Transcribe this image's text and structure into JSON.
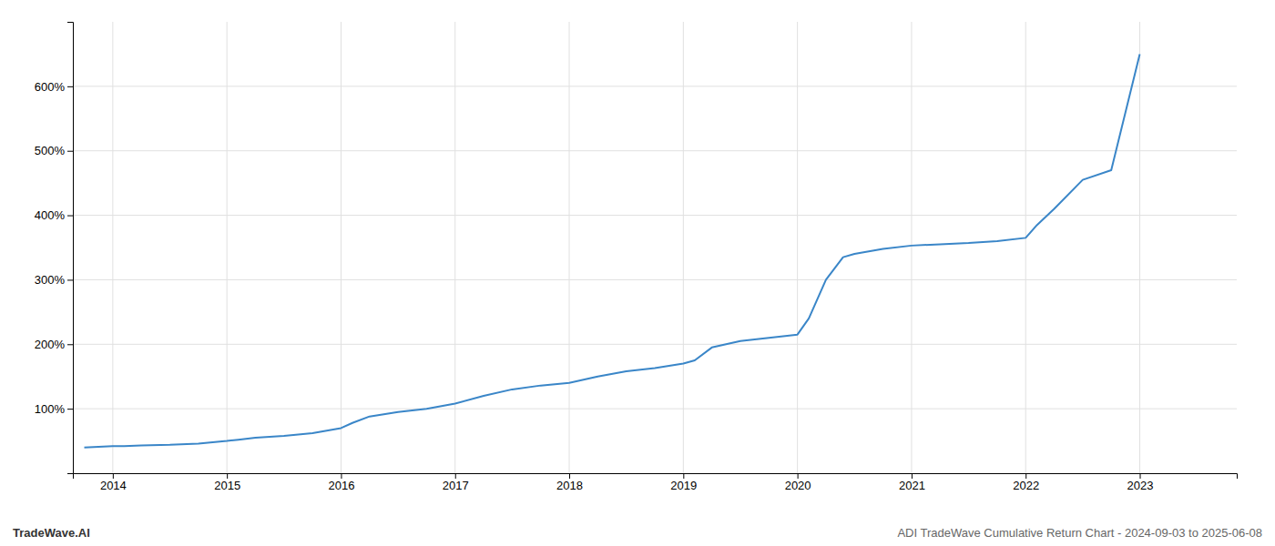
{
  "chart_data": {
    "type": "line",
    "annotations": [
      "TradeWave.AI",
      "ADI TradeWave Cumulative Return Chart - 2024-09-03 to 2025-06-08"
    ],
    "x": [
      2013.75,
      2014.0,
      2014.1,
      2014.25,
      2014.5,
      2014.75,
      2015.0,
      2015.1,
      2015.25,
      2015.5,
      2015.75,
      2016.0,
      2016.1,
      2016.25,
      2016.5,
      2016.75,
      2017.0,
      2017.25,
      2017.5,
      2017.75,
      2018.0,
      2018.25,
      2018.5,
      2018.75,
      2019.0,
      2019.1,
      2019.25,
      2019.5,
      2019.75,
      2020.0,
      2020.1,
      2020.25,
      2020.4,
      2020.5,
      2020.75,
      2021.0,
      2021.25,
      2021.5,
      2021.75,
      2022.0,
      2022.1,
      2022.25,
      2022.5,
      2022.75,
      2023.0
    ],
    "values": [
      40,
      42,
      42,
      43,
      44,
      46,
      50,
      52,
      55,
      58,
      62,
      70,
      78,
      88,
      95,
      100,
      108,
      120,
      130,
      136,
      140,
      150,
      158,
      163,
      170,
      175,
      195,
      205,
      210,
      215,
      240,
      300,
      335,
      340,
      348,
      353,
      355,
      357,
      360,
      365,
      385,
      410,
      455,
      470,
      650
    ],
    "color": "#3a86c8",
    "xlim": [
      2013.65,
      2023.85
    ],
    "ylim": [
      0,
      700
    ],
    "xticks": [
      2014,
      2015,
      2016,
      2017,
      2018,
      2019,
      2020,
      2021,
      2022,
      2023
    ],
    "yticks": [
      {
        "value": 100,
        "label": "100%"
      },
      {
        "value": 200,
        "label": "200%"
      },
      {
        "value": 300,
        "label": "300%"
      },
      {
        "value": 400,
        "label": "400%"
      },
      {
        "value": 500,
        "label": "500%"
      },
      {
        "value": 600,
        "label": "600%"
      }
    ],
    "grid": true
  }
}
